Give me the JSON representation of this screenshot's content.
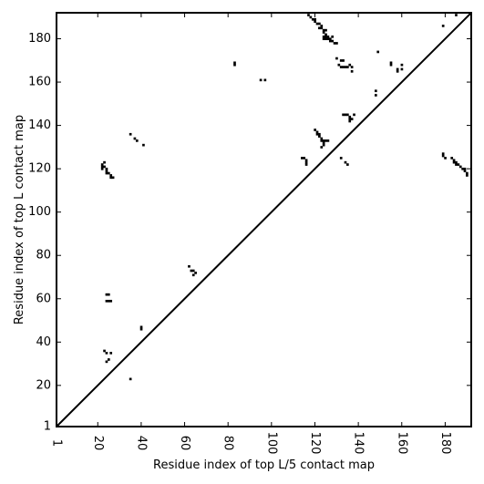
{
  "chart_data": {
    "type": "heatmap",
    "xlabel": "Residue index of top L/5 contact map",
    "ylabel": "Residue index of top L contact map",
    "xlim": [
      1,
      192
    ],
    "ylim": [
      1,
      192
    ],
    "grid": false,
    "diagonal": true,
    "x_ticks": [
      1,
      20,
      40,
      60,
      80,
      100,
      120,
      140,
      160,
      180
    ],
    "y_ticks": [
      1,
      20,
      40,
      60,
      80,
      100,
      120,
      140,
      160,
      180
    ],
    "colors": {
      "contact": "#000000",
      "background": "#ffffff",
      "axis": "#000000"
    },
    "upper_contacts": [
      [
        117,
        191
      ],
      [
        118,
        190
      ],
      [
        119,
        189
      ],
      [
        120,
        189
      ],
      [
        120,
        188
      ],
      [
        121,
        187
      ],
      [
        122,
        187
      ],
      [
        123,
        186
      ],
      [
        122,
        185
      ],
      [
        123,
        185
      ],
      [
        124,
        184
      ],
      [
        124,
        183
      ],
      [
        125,
        184
      ],
      [
        125,
        182
      ],
      [
        124,
        181
      ],
      [
        125,
        181
      ],
      [
        126,
        181
      ],
      [
        126,
        180
      ],
      [
        127,
        180
      ],
      [
        127,
        179
      ],
      [
        128,
        181
      ],
      [
        128,
        179
      ],
      [
        124,
        180
      ],
      [
        125,
        180
      ],
      [
        130,
        178
      ],
      [
        129,
        178
      ],
      [
        132,
        170
      ],
      [
        133,
        170
      ],
      [
        131,
        168
      ],
      [
        132,
        167
      ],
      [
        133,
        167
      ],
      [
        134,
        167
      ],
      [
        135,
        167
      ],
      [
        136,
        168
      ],
      [
        137,
        167
      ],
      [
        137,
        165
      ],
      [
        130,
        171
      ],
      [
        83,
        169
      ],
      [
        83,
        168
      ],
      [
        95,
        161
      ],
      [
        97,
        161
      ],
      [
        148,
        154
      ],
      [
        148,
        156
      ],
      [
        149,
        174
      ],
      [
        155,
        169
      ],
      [
        155,
        168
      ],
      [
        158,
        166
      ],
      [
        158,
        165
      ],
      [
        160,
        168
      ],
      [
        160,
        166
      ],
      [
        179,
        186
      ],
      [
        185,
        191
      ]
    ],
    "lower_contacts": [
      [
        22,
        122
      ],
      [
        22,
        121
      ],
      [
        22,
        120
      ],
      [
        23,
        121
      ],
      [
        24,
        120
      ],
      [
        24,
        119
      ],
      [
        25,
        118
      ],
      [
        24,
        118
      ],
      [
        26,
        117
      ],
      [
        26,
        116
      ],
      [
        27,
        116
      ],
      [
        23,
        123
      ],
      [
        35,
        136
      ],
      [
        37,
        134
      ],
      [
        38,
        133
      ],
      [
        41,
        131
      ],
      [
        24,
        62
      ],
      [
        25,
        62
      ],
      [
        24,
        59
      ],
      [
        25,
        59
      ],
      [
        26,
        59
      ],
      [
        40,
        47
      ],
      [
        40,
        46
      ],
      [
        62,
        75
      ],
      [
        63,
        73
      ],
      [
        64,
        73
      ],
      [
        65,
        72
      ],
      [
        64,
        71
      ],
      [
        23,
        36
      ],
      [
        24,
        35
      ],
      [
        26,
        35
      ],
      [
        25,
        32
      ],
      [
        24,
        31
      ],
      [
        35,
        23
      ],
      [
        120,
        138
      ],
      [
        121,
        137
      ],
      [
        121,
        136
      ],
      [
        122,
        136
      ],
      [
        122,
        135
      ],
      [
        123,
        134
      ],
      [
        123,
        133
      ],
      [
        124,
        133
      ],
      [
        124,
        132
      ],
      [
        124,
        131
      ],
      [
        125,
        133
      ],
      [
        126,
        133
      ],
      [
        123,
        130
      ],
      [
        114,
        125
      ],
      [
        115,
        125
      ],
      [
        116,
        124
      ],
      [
        116,
        123
      ],
      [
        116,
        122
      ],
      [
        132,
        125
      ],
      [
        134,
        123
      ],
      [
        135,
        122
      ],
      [
        133,
        145
      ],
      [
        134,
        145
      ],
      [
        135,
        145
      ],
      [
        136,
        144
      ],
      [
        136,
        143
      ],
      [
        136,
        142
      ],
      [
        137,
        143
      ],
      [
        138,
        145
      ],
      [
        179,
        127
      ],
      [
        179,
        126
      ],
      [
        180,
        125
      ],
      [
        183,
        125
      ],
      [
        184,
        124
      ],
      [
        184,
        123
      ],
      [
        185,
        123
      ],
      [
        185,
        122
      ],
      [
        186,
        122
      ],
      [
        187,
        121
      ],
      [
        188,
        120
      ],
      [
        189,
        120
      ],
      [
        189,
        119
      ],
      [
        190,
        118
      ],
      [
        190,
        117
      ]
    ]
  }
}
